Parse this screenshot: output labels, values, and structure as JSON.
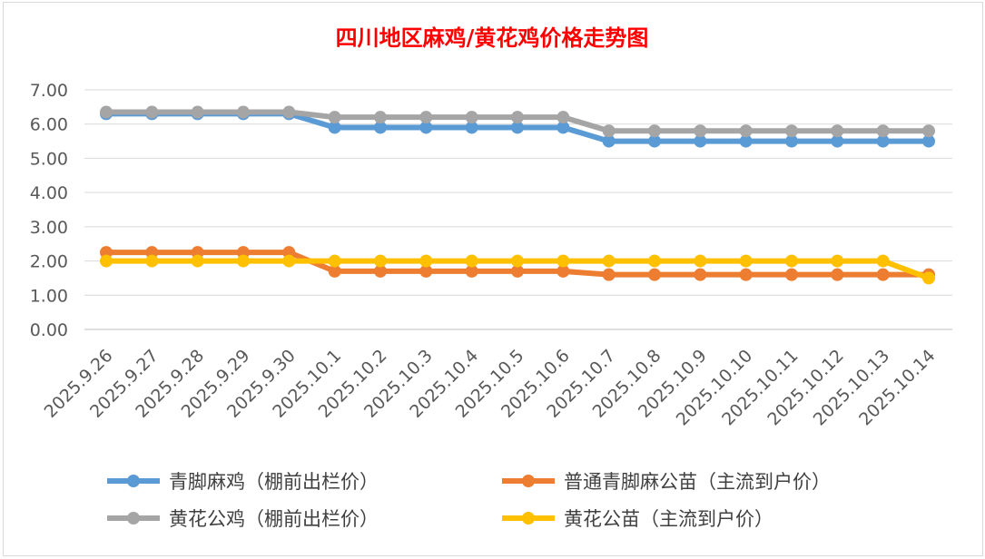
{
  "chart_data": {
    "type": "line",
    "title": "四川地区麻鸡/黄花鸡价格走势图",
    "xlabel": "",
    "ylabel": "",
    "ylim": [
      0,
      7
    ],
    "yticks": [
      "0.00",
      "1.00",
      "2.00",
      "3.00",
      "4.00",
      "5.00",
      "6.00",
      "7.00"
    ],
    "grid": true,
    "legend_position": "bottom",
    "categories": [
      "2025.9.26",
      "2025.9.27",
      "2025.9.28",
      "2025.9.29",
      "2025.9.30",
      "2025.10.1",
      "2025.10.2",
      "2025.10.3",
      "2025.10.4",
      "2025.10.5",
      "2025.10.6",
      "2025.10.7",
      "2025.10.8",
      "2025.10.9",
      "2025.10.10",
      "2025.10.11",
      "2025.10.12",
      "2025.10.13",
      "2025.10.14"
    ],
    "series": [
      {
        "name": "青脚麻鸡（棚前出栏价）",
        "color": "#5b9bd5",
        "values": [
          6.3,
          6.3,
          6.3,
          6.3,
          6.3,
          5.9,
          5.9,
          5.9,
          5.9,
          5.9,
          5.9,
          5.5,
          5.5,
          5.5,
          5.5,
          5.5,
          5.5,
          5.5,
          5.5
        ]
      },
      {
        "name": "普通青脚麻公苗（主流到户价）",
        "color": "#ed7d31",
        "values": [
          2.25,
          2.25,
          2.25,
          2.25,
          2.25,
          1.7,
          1.7,
          1.7,
          1.7,
          1.7,
          1.7,
          1.6,
          1.6,
          1.6,
          1.6,
          1.6,
          1.6,
          1.6,
          1.6
        ]
      },
      {
        "name": "黄花公鸡（棚前出栏价）",
        "color": "#a5a5a5",
        "values": [
          6.35,
          6.35,
          6.35,
          6.35,
          6.35,
          6.2,
          6.2,
          6.2,
          6.2,
          6.2,
          6.2,
          5.8,
          5.8,
          5.8,
          5.8,
          5.8,
          5.8,
          5.8,
          5.8
        ]
      },
      {
        "name": "黄花公苗（主流到户价）",
        "color": "#ffc000",
        "values": [
          2.0,
          2.0,
          2.0,
          2.0,
          2.0,
          2.0,
          2.0,
          2.0,
          2.0,
          2.0,
          2.0,
          2.0,
          2.0,
          2.0,
          2.0,
          2.0,
          2.0,
          2.0,
          1.5
        ]
      }
    ]
  }
}
